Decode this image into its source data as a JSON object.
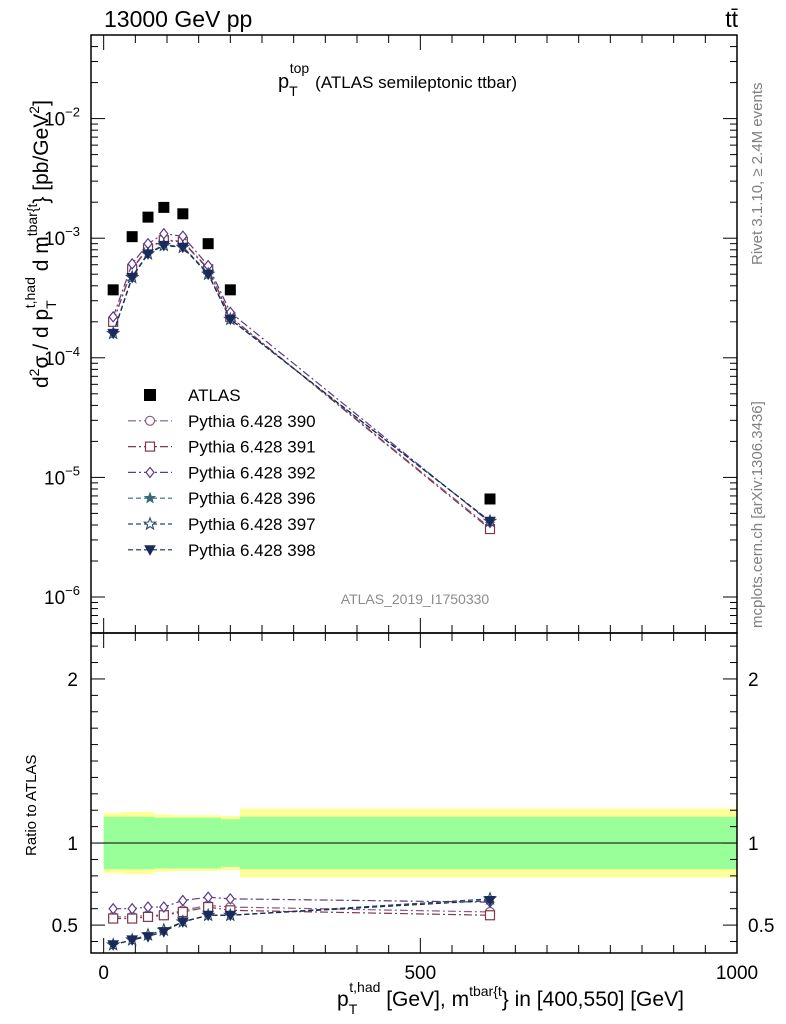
{
  "header": {
    "left": "13000 GeV pp",
    "right": "tt̄"
  },
  "side_labels": {
    "rivet": "Rivet 3.1.10, ≥ 2.4M events",
    "mcplots": "mcplots.cern.ch [arXiv:1306.3436]"
  },
  "chart_data": [
    {
      "type": "line",
      "title": {
        "base": "p",
        "sub": "T",
        "sup": "top",
        "rest": "(ATLAS semileptonic ttbar)"
      },
      "analysis_tag": "ATLAS_2019_I1750330",
      "yscale": "log",
      "ylim": [
        5e-07,
        0.05
      ],
      "xlim": [
        -20,
        1000
      ],
      "ytick_labels": [
        {
          "v": 1e-06,
          "exp": "−6"
        },
        {
          "v": 1e-05,
          "exp": "−5"
        },
        {
          "v": 0.0001,
          "exp": "−4"
        },
        {
          "v": 0.001,
          "exp": "−3"
        },
        {
          "v": 0.01,
          "exp": "−2"
        }
      ],
      "ylabel": {
        "p1": "d",
        "p1sup": "2",
        "p2": "σ / d p",
        "p2sub": "T",
        "p2sup": "t,had",
        "p3": " d m",
        "p3sup": "tbar{t",
        "p4": "} [pb/GeV",
        "p4sup": "2",
        "p5": "]"
      },
      "legend_placement": "left-middle",
      "x": [
        15,
        45,
        70,
        95,
        125,
        165,
        200,
        610
      ],
      "data": {
        "name": "ATLAS",
        "values": [
          0.00037,
          0.00103,
          0.0015,
          0.00181,
          0.0016,
          0.0009,
          0.00037,
          6.6e-06
        ],
        "band_inner": [
          0.12,
          0.12,
          0.12,
          0.115,
          0.115,
          0.115,
          0.12,
          0.16
        ],
        "band_outer": [
          0.19,
          0.19,
          0.19,
          0.18,
          0.18,
          0.18,
          0.19,
          0.21
        ]
      },
      "series": [
        {
          "name": "Pythia 6.428 390",
          "color": "#8a5a8a",
          "marker": "circle-open",
          "dash": "8,3,2,3",
          "values": [
            0.0002,
            0.00056,
            0.00083,
            0.00097,
            0.00094,
            0.00056,
            0.00022,
            3.8e-06
          ]
        },
        {
          "name": "Pythia 6.428 391",
          "color": "#7a3a4a",
          "marker": "square-open",
          "dash": "8,3,2,3",
          "values": [
            0.0002,
            0.00055,
            0.00082,
            0.00096,
            0.00093,
            0.00055,
            0.00022,
            3.7e-06
          ]
        },
        {
          "name": "Pythia 6.428 392",
          "color": "#5a3a8a",
          "marker": "diamond-open",
          "dash": "8,3,2,3",
          "values": [
            0.00022,
            0.00061,
            0.0009,
            0.00109,
            0.00104,
            0.00059,
            0.00024,
            4.2e-06
          ]
        },
        {
          "name": "Pythia 6.428 396",
          "color": "#3a6a7a",
          "marker": "star-filled",
          "dash": "5,3",
          "values": [
            0.00016,
            0.00048,
            0.00075,
            0.00088,
            0.00085,
            0.00051,
            0.00021,
            4.3e-06
          ]
        },
        {
          "name": "Pythia 6.428 397",
          "color": "#2a4a6a",
          "marker": "star-open",
          "dash": "5,3",
          "values": [
            0.00016,
            0.00047,
            0.00074,
            0.00087,
            0.00084,
            0.0005,
            0.00021,
            4.3e-06
          ]
        },
        {
          "name": "Pythia 6.428 398",
          "color": "#1a2a5a",
          "marker": "tri-down-filled",
          "dash": "5,3",
          "values": [
            0.00016,
            0.00047,
            0.00074,
            0.00087,
            0.00084,
            0.0005,
            0.00021,
            4.3e-06
          ]
        }
      ]
    },
    {
      "type": "line",
      "ylabel": "Ratio to ATLAS",
      "ylim": [
        0.33,
        2.28
      ],
      "ytick_labels": [
        0.5,
        1,
        2
      ],
      "ytick_text": [
        "0.5",
        "1",
        "2"
      ],
      "xlim": [
        -20,
        1000
      ],
      "xtick_labels": [
        0,
        500,
        1000
      ],
      "xtick_text": [
        "0",
        "500",
        "1000"
      ],
      "band_x_edges": [
        0,
        30,
        60,
        80,
        110,
        140,
        185,
        215,
        1000
      ],
      "band_inner": [
        0.16,
        0.16,
        0.16,
        0.155,
        0.155,
        0.155,
        0.145,
        0.16
      ],
      "band_outer": [
        0.185,
        0.19,
        0.19,
        0.175,
        0.17,
        0.17,
        0.165,
        0.21
      ],
      "xlabel": {
        "p1": "p",
        "p1sub": "T",
        "p1sup": "t,had",
        "p2": " [GeV], m",
        "p2sup": "tbar{t",
        "p3": "} in [400,550] [GeV]"
      },
      "x": [
        15,
        45,
        70,
        95,
        125,
        165,
        200,
        610
      ],
      "series": [
        {
          "name": "Pythia 6.428 390",
          "values": [
            0.55,
            0.55,
            0.56,
            0.56,
            0.59,
            0.62,
            0.61,
            0.58
          ]
        },
        {
          "name": "Pythia 6.428 391",
          "values": [
            0.54,
            0.54,
            0.55,
            0.56,
            0.58,
            0.61,
            0.59,
            0.56
          ]
        },
        {
          "name": "Pythia 6.428 392",
          "values": [
            0.6,
            0.6,
            0.61,
            0.61,
            0.65,
            0.67,
            0.66,
            0.64
          ]
        },
        {
          "name": "Pythia 6.428 396",
          "values": [
            0.38,
            0.41,
            0.44,
            0.47,
            0.52,
            0.56,
            0.56,
            0.66
          ]
        },
        {
          "name": "Pythia 6.428 397",
          "values": [
            0.38,
            0.41,
            0.44,
            0.47,
            0.52,
            0.56,
            0.56,
            0.66
          ]
        },
        {
          "name": "Pythia 6.428 398",
          "values": [
            0.38,
            0.41,
            0.43,
            0.46,
            0.52,
            0.56,
            0.56,
            0.65
          ]
        }
      ]
    }
  ]
}
